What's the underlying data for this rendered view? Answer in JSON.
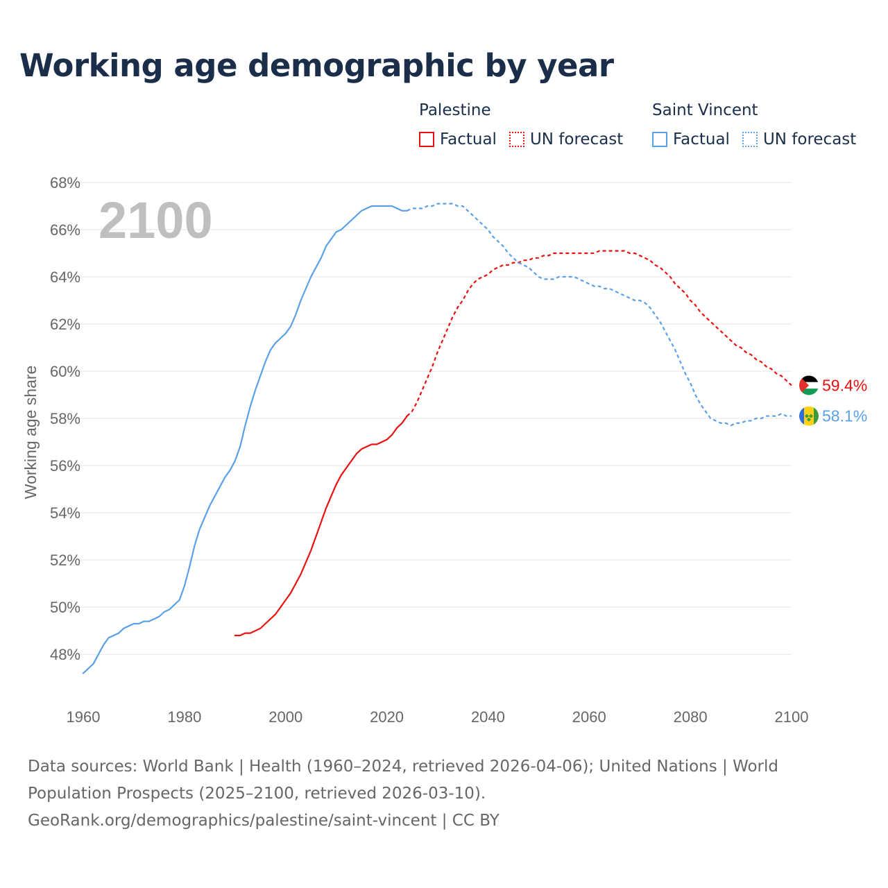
{
  "title": "Working age demographic by year",
  "legend": {
    "groups": [
      {
        "name": "Palestine",
        "factual_label": "Factual",
        "forecast_label": "UN forecast",
        "color": "#e8110f"
      },
      {
        "name": "Saint Vincent",
        "factual_label": "Factual",
        "forecast_label": "UN forecast",
        "color": "#5aa0e6"
      }
    ]
  },
  "year_label": "2100",
  "footer": {
    "line1": "Data sources: World Bank | Health (1960–2024, retrieved 2026-04-06); United Nations | World",
    "line2": "Population Prospects (2025–2100, retrieved 2026-03-10).",
    "line3": "GeoRank.org/demographics/palestine/saint-vincent | CC BY"
  },
  "chart_data": {
    "type": "line",
    "title": "Working age demographic by year",
    "xlabel": "",
    "ylabel": "Working age share",
    "xlim": [
      1960,
      2100
    ],
    "ylim": [
      46.8,
      68
    ],
    "x_ticks": [
      1960,
      1980,
      2000,
      2020,
      2040,
      2060,
      2080,
      2100
    ],
    "y_ticks": [
      48,
      50,
      52,
      54,
      56,
      58,
      60,
      62,
      64,
      66,
      68
    ],
    "y_tick_labels": [
      "48%",
      "50%",
      "52%",
      "54%",
      "56%",
      "58%",
      "60%",
      "62%",
      "64%",
      "66%",
      "68%"
    ],
    "grid": true,
    "series": [
      {
        "name": "Palestine",
        "color": "#e8110f",
        "end_label": "59.4%",
        "factual": [
          [
            1990,
            48.8
          ],
          [
            1991,
            48.8
          ],
          [
            1992,
            48.9
          ],
          [
            1993,
            48.9
          ],
          [
            1994,
            49.0
          ],
          [
            1995,
            49.1
          ],
          [
            1996,
            49.3
          ],
          [
            1997,
            49.5
          ],
          [
            1998,
            49.7
          ],
          [
            1999,
            50.0
          ],
          [
            2000,
            50.3
          ],
          [
            2001,
            50.6
          ],
          [
            2002,
            51.0
          ],
          [
            2003,
            51.4
          ],
          [
            2004,
            51.9
          ],
          [
            2005,
            52.4
          ],
          [
            2006,
            53.0
          ],
          [
            2007,
            53.6
          ],
          [
            2008,
            54.2
          ],
          [
            2009,
            54.7
          ],
          [
            2010,
            55.2
          ],
          [
            2011,
            55.6
          ],
          [
            2012,
            55.9
          ],
          [
            2013,
            56.2
          ],
          [
            2014,
            56.5
          ],
          [
            2015,
            56.7
          ],
          [
            2016,
            56.8
          ],
          [
            2017,
            56.9
          ],
          [
            2018,
            56.9
          ],
          [
            2019,
            57.0
          ],
          [
            2020,
            57.1
          ],
          [
            2021,
            57.3
          ],
          [
            2022,
            57.6
          ],
          [
            2023,
            57.8
          ],
          [
            2024,
            58.1
          ]
        ],
        "forecast": [
          [
            2024,
            58.1
          ],
          [
            2025,
            58.3
          ],
          [
            2026,
            58.7
          ],
          [
            2027,
            59.2
          ],
          [
            2028,
            59.7
          ],
          [
            2029,
            60.2
          ],
          [
            2030,
            60.8
          ],
          [
            2031,
            61.3
          ],
          [
            2032,
            61.8
          ],
          [
            2033,
            62.3
          ],
          [
            2034,
            62.7
          ],
          [
            2035,
            63.0
          ],
          [
            2036,
            63.4
          ],
          [
            2037,
            63.7
          ],
          [
            2038,
            63.9
          ],
          [
            2039,
            64.0
          ],
          [
            2040,
            64.1
          ],
          [
            2041,
            64.3
          ],
          [
            2042,
            64.4
          ],
          [
            2043,
            64.5
          ],
          [
            2044,
            64.5
          ],
          [
            2045,
            64.6
          ],
          [
            2046,
            64.6
          ],
          [
            2047,
            64.7
          ],
          [
            2048,
            64.7
          ],
          [
            2049,
            64.8
          ],
          [
            2050,
            64.8
          ],
          [
            2051,
            64.9
          ],
          [
            2052,
            64.9
          ],
          [
            2053,
            65.0
          ],
          [
            2054,
            65.0
          ],
          [
            2055,
            65.0
          ],
          [
            2056,
            65.0
          ],
          [
            2057,
            65.0
          ],
          [
            2058,
            65.0
          ],
          [
            2059,
            65.0
          ],
          [
            2060,
            65.0
          ],
          [
            2061,
            65.0
          ],
          [
            2062,
            65.1
          ],
          [
            2063,
            65.1
          ],
          [
            2064,
            65.1
          ],
          [
            2065,
            65.1
          ],
          [
            2066,
            65.1
          ],
          [
            2067,
            65.1
          ],
          [
            2068,
            65.0
          ],
          [
            2069,
            65.0
          ],
          [
            2070,
            64.9
          ],
          [
            2071,
            64.8
          ],
          [
            2072,
            64.7
          ],
          [
            2073,
            64.5
          ],
          [
            2074,
            64.4
          ],
          [
            2075,
            64.2
          ],
          [
            2076,
            64.0
          ],
          [
            2077,
            63.7
          ],
          [
            2078,
            63.5
          ],
          [
            2079,
            63.3
          ],
          [
            2080,
            63.0
          ],
          [
            2081,
            62.8
          ],
          [
            2082,
            62.5
          ],
          [
            2083,
            62.3
          ],
          [
            2084,
            62.1
          ],
          [
            2085,
            61.9
          ],
          [
            2086,
            61.7
          ],
          [
            2087,
            61.5
          ],
          [
            2088,
            61.3
          ],
          [
            2089,
            61.1
          ],
          [
            2090,
            61.0
          ],
          [
            2091,
            60.8
          ],
          [
            2092,
            60.7
          ],
          [
            2093,
            60.5
          ],
          [
            2094,
            60.4
          ],
          [
            2095,
            60.2
          ],
          [
            2096,
            60.1
          ],
          [
            2097,
            59.9
          ],
          [
            2098,
            59.8
          ],
          [
            2099,
            59.6
          ],
          [
            2100,
            59.4
          ]
        ]
      },
      {
        "name": "Saint Vincent",
        "color": "#5aa0e6",
        "end_label": "58.1%",
        "factual": [
          [
            1960,
            47.2
          ],
          [
            1961,
            47.4
          ],
          [
            1962,
            47.6
          ],
          [
            1963,
            48.0
          ],
          [
            1964,
            48.4
          ],
          [
            1965,
            48.7
          ],
          [
            1966,
            48.8
          ],
          [
            1967,
            48.9
          ],
          [
            1968,
            49.1
          ],
          [
            1969,
            49.2
          ],
          [
            1970,
            49.3
          ],
          [
            1971,
            49.3
          ],
          [
            1972,
            49.4
          ],
          [
            1973,
            49.4
          ],
          [
            1974,
            49.5
          ],
          [
            1975,
            49.6
          ],
          [
            1976,
            49.8
          ],
          [
            1977,
            49.9
          ],
          [
            1978,
            50.1
          ],
          [
            1979,
            50.3
          ],
          [
            1980,
            50.9
          ],
          [
            1981,
            51.7
          ],
          [
            1982,
            52.6
          ],
          [
            1983,
            53.3
          ],
          [
            1984,
            53.8
          ],
          [
            1985,
            54.3
          ],
          [
            1986,
            54.7
          ],
          [
            1987,
            55.1
          ],
          [
            1988,
            55.5
          ],
          [
            1989,
            55.8
          ],
          [
            1990,
            56.2
          ],
          [
            1991,
            56.8
          ],
          [
            1992,
            57.7
          ],
          [
            1993,
            58.5
          ],
          [
            1994,
            59.2
          ],
          [
            1995,
            59.8
          ],
          [
            1996,
            60.4
          ],
          [
            1997,
            60.9
          ],
          [
            1998,
            61.2
          ],
          [
            1999,
            61.4
          ],
          [
            2000,
            61.6
          ],
          [
            2001,
            61.9
          ],
          [
            2002,
            62.4
          ],
          [
            2003,
            63.0
          ],
          [
            2004,
            63.5
          ],
          [
            2005,
            64.0
          ],
          [
            2006,
            64.4
          ],
          [
            2007,
            64.8
          ],
          [
            2008,
            65.3
          ],
          [
            2009,
            65.6
          ],
          [
            2010,
            65.9
          ],
          [
            2011,
            66.0
          ],
          [
            2012,
            66.2
          ],
          [
            2013,
            66.4
          ],
          [
            2014,
            66.6
          ],
          [
            2015,
            66.8
          ],
          [
            2016,
            66.9
          ],
          [
            2017,
            67.0
          ],
          [
            2018,
            67.0
          ],
          [
            2019,
            67.0
          ],
          [
            2020,
            67.0
          ],
          [
            2021,
            67.0
          ],
          [
            2022,
            66.9
          ],
          [
            2023,
            66.8
          ],
          [
            2024,
            66.8
          ]
        ],
        "forecast": [
          [
            2024,
            66.8
          ],
          [
            2025,
            66.9
          ],
          [
            2026,
            66.9
          ],
          [
            2027,
            66.9
          ],
          [
            2028,
            67.0
          ],
          [
            2029,
            67.0
          ],
          [
            2030,
            67.1
          ],
          [
            2031,
            67.1
          ],
          [
            2032,
            67.1
          ],
          [
            2033,
            67.1
          ],
          [
            2034,
            67.0
          ],
          [
            2035,
            67.0
          ],
          [
            2036,
            66.8
          ],
          [
            2037,
            66.6
          ],
          [
            2038,
            66.4
          ],
          [
            2039,
            66.2
          ],
          [
            2040,
            66.0
          ],
          [
            2041,
            65.7
          ],
          [
            2042,
            65.5
          ],
          [
            2043,
            65.3
          ],
          [
            2044,
            65.0
          ],
          [
            2045,
            64.8
          ],
          [
            2046,
            64.6
          ],
          [
            2047,
            64.5
          ],
          [
            2048,
            64.4
          ],
          [
            2049,
            64.2
          ],
          [
            2050,
            64.0
          ],
          [
            2051,
            63.9
          ],
          [
            2052,
            63.9
          ],
          [
            2053,
            63.9
          ],
          [
            2054,
            64.0
          ],
          [
            2055,
            64.0
          ],
          [
            2056,
            64.0
          ],
          [
            2057,
            64.0
          ],
          [
            2058,
            63.9
          ],
          [
            2059,
            63.8
          ],
          [
            2060,
            63.7
          ],
          [
            2061,
            63.6
          ],
          [
            2062,
            63.6
          ],
          [
            2063,
            63.5
          ],
          [
            2064,
            63.5
          ],
          [
            2065,
            63.4
          ],
          [
            2066,
            63.3
          ],
          [
            2067,
            63.2
          ],
          [
            2068,
            63.1
          ],
          [
            2069,
            63.0
          ],
          [
            2070,
            63.0
          ],
          [
            2071,
            62.9
          ],
          [
            2072,
            62.7
          ],
          [
            2073,
            62.4
          ],
          [
            2074,
            62.1
          ],
          [
            2075,
            61.7
          ],
          [
            2076,
            61.3
          ],
          [
            2077,
            60.9
          ],
          [
            2078,
            60.4
          ],
          [
            2079,
            59.9
          ],
          [
            2080,
            59.5
          ],
          [
            2081,
            59.0
          ],
          [
            2082,
            58.6
          ],
          [
            2083,
            58.3
          ],
          [
            2084,
            58.0
          ],
          [
            2085,
            57.9
          ],
          [
            2086,
            57.8
          ],
          [
            2087,
            57.8
          ],
          [
            2088,
            57.7
          ],
          [
            2089,
            57.8
          ],
          [
            2090,
            57.8
          ],
          [
            2091,
            57.9
          ],
          [
            2092,
            57.9
          ],
          [
            2093,
            58.0
          ],
          [
            2094,
            58.0
          ],
          [
            2095,
            58.1
          ],
          [
            2096,
            58.1
          ],
          [
            2097,
            58.1
          ],
          [
            2098,
            58.2
          ],
          [
            2099,
            58.1
          ],
          [
            2100,
            58.1
          ]
        ]
      }
    ]
  }
}
